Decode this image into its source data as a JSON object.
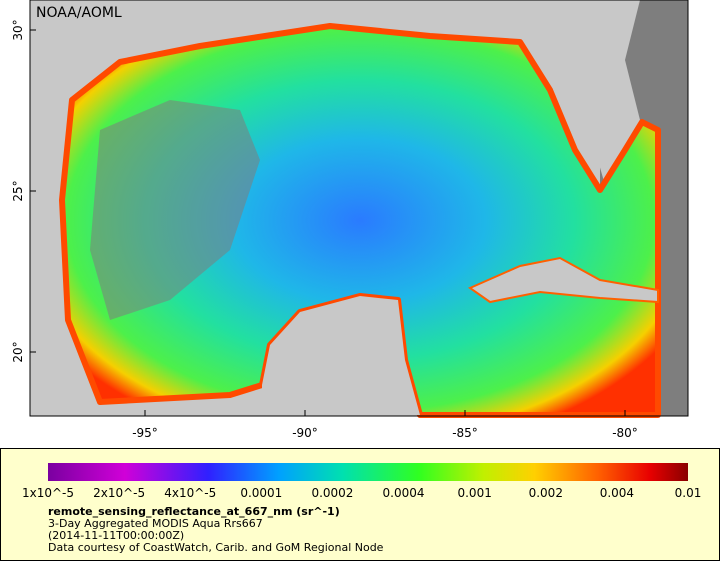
{
  "header": {
    "credit": "NOAA/AOML"
  },
  "axes": {
    "lat_labels": [
      "30°",
      "25°",
      "20°"
    ],
    "lon_labels": [
      "-95°",
      "-90°",
      "-85°",
      "-80°"
    ]
  },
  "legend": {
    "scale_labels": [
      "1x10^-5",
      "2x10^-5",
      "4x10^-5",
      "0.0001",
      "0.0002",
      "0.0004",
      "0.001",
      "0.002",
      "0.004",
      "0.01"
    ],
    "title": "remote_sensing_reflectance_at_667_nm (sr^-1)",
    "lines": [
      "3-Day Aggregated MODIS Aqua Rrs667",
      "(2014-11-11T00:00:00Z)",
      "Data courtesy of CoastWatch, Carib. and GoM Regional Node"
    ]
  }
}
